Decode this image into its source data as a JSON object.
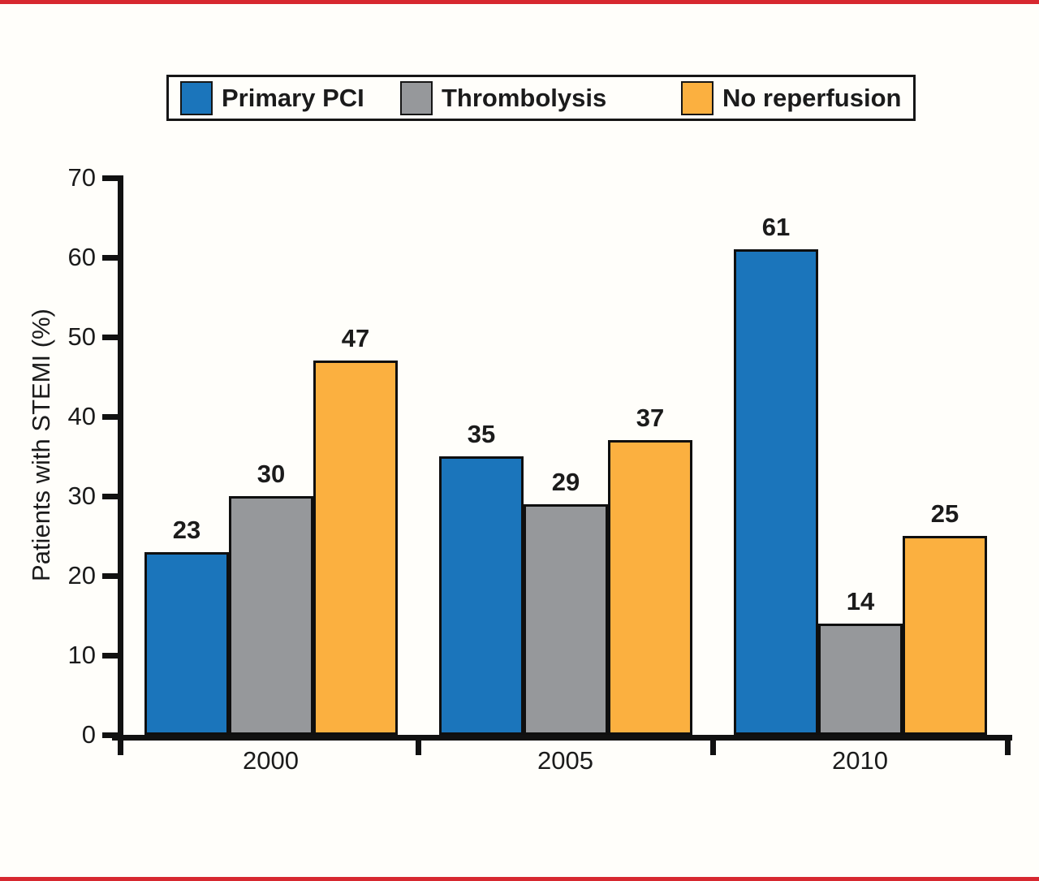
{
  "page": {
    "background": "#fffefa",
    "accent_bar_color": "#d7282f"
  },
  "chart_data": {
    "type": "bar",
    "title": "",
    "categories": [
      "2000",
      "2005",
      "2010"
    ],
    "series": [
      {
        "name": "Primary PCI",
        "color": "#1b75bb",
        "values": [
          23,
          35,
          61
        ]
      },
      {
        "name": "Thrombolysis",
        "color": "#96989b",
        "values": [
          30,
          29,
          14
        ]
      },
      {
        "name": "No reperfusion",
        "color": "#fbb040",
        "values": [
          47,
          37,
          25
        ]
      }
    ],
    "ylabel": "Patients with STEMI (%)",
    "ylim": [
      0,
      70
    ],
    "yticks": [
      0,
      10,
      20,
      30,
      40,
      50,
      60,
      70
    ],
    "grid": false,
    "legend_position": "top",
    "bar_labels": true
  }
}
